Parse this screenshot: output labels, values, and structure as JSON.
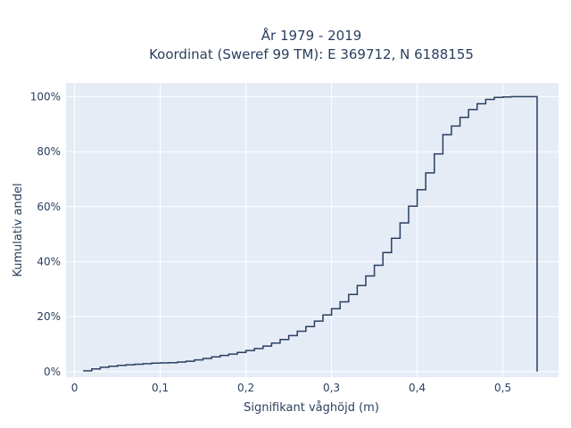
{
  "chart_data": {
    "type": "line",
    "subtype": "ecdf-step",
    "title_line1": "År 1979 - 2019",
    "title_line2": "Koordinat (Sweref 99 TM): E 369712, N 6188155",
    "xlabel": "Signifikant våghöjd (m)",
    "ylabel": "Kumulativ andel",
    "xlim": [
      -0.01,
      0.565
    ],
    "ylim": [
      -0.02,
      1.05
    ],
    "x_ticks": [
      0,
      0.1,
      0.2,
      0.3,
      0.4,
      0.5
    ],
    "x_tick_labels": [
      "0",
      "0,1",
      "0,2",
      "0,3",
      "0,4",
      "0,5"
    ],
    "y_ticks": [
      0,
      0.2,
      0.4,
      0.6,
      0.8,
      1.0
    ],
    "y_tick_labels": [
      "0%",
      "20%",
      "40%",
      "60%",
      "80%",
      "100%"
    ],
    "grid": true,
    "colors": {
      "plot_bg": "#e5ecf6",
      "grid": "#ffffff",
      "line": "#2a3f5f",
      "text": "#2a3f5f"
    },
    "series": [
      {
        "x": [
          0.01,
          0.02,
          0.03,
          0.04,
          0.05,
          0.06,
          0.07,
          0.08,
          0.09,
          0.1,
          0.11,
          0.12,
          0.13,
          0.14,
          0.15,
          0.16,
          0.17,
          0.18,
          0.19,
          0.2,
          0.21,
          0.22,
          0.23,
          0.24,
          0.25,
          0.26,
          0.27,
          0.28,
          0.29,
          0.3,
          0.31,
          0.32,
          0.33,
          0.34,
          0.35,
          0.36,
          0.37,
          0.38,
          0.39,
          0.4,
          0.41,
          0.42,
          0.43,
          0.44,
          0.45,
          0.46,
          0.47,
          0.48,
          0.49,
          0.5,
          0.51,
          0.52,
          0.53,
          0.54
        ],
        "y": [
          0.003,
          0.01,
          0.016,
          0.02,
          0.023,
          0.025,
          0.027,
          0.029,
          0.031,
          0.032,
          0.033,
          0.035,
          0.038,
          0.043,
          0.048,
          0.054,
          0.059,
          0.064,
          0.07,
          0.077,
          0.084,
          0.093,
          0.104,
          0.117,
          0.131,
          0.147,
          0.164,
          0.184,
          0.206,
          0.229,
          0.254,
          0.281,
          0.313,
          0.348,
          0.387,
          0.433,
          0.485,
          0.541,
          0.602,
          0.662,
          0.723,
          0.792,
          0.862,
          0.893,
          0.925,
          0.953,
          0.974,
          0.99,
          0.997,
          0.999,
          1.0,
          1.0,
          1.0,
          0.0
        ]
      }
    ]
  }
}
